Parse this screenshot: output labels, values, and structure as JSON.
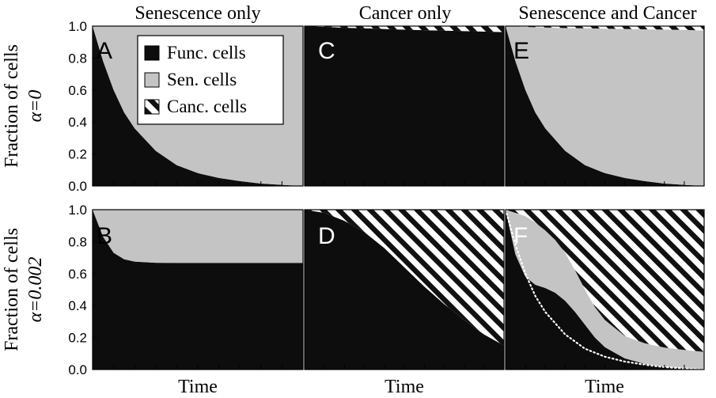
{
  "columns": [
    "Senescence only",
    "Cancer only",
    "Senescence and Cancer"
  ],
  "row_labels": [
    {
      "ylabel": "Fraction of cells",
      "param": "α=0"
    },
    {
      "ylabel": "Fraction of cells",
      "param": "α=0.002"
    }
  ],
  "xlabel": "Time",
  "y_ticks": [
    "0.0",
    "0.2",
    "0.4",
    "0.6",
    "0.8",
    "1.0"
  ],
  "legend": {
    "items": [
      {
        "label": "Func. cells",
        "pattern": "solid-black"
      },
      {
        "label": "Sen. cells",
        "pattern": "solid-grey"
      },
      {
        "label": "Canc. cells",
        "pattern": "hatched"
      }
    ]
  },
  "colors": {
    "functional": "#0d0d0d",
    "senescent": "#c4c4c4",
    "cancer_hatch": "#111111",
    "background": "#ffffff"
  },
  "chart_data": [
    {
      "panel": "A",
      "type": "area",
      "stacked": true,
      "ylim": [
        0,
        1
      ],
      "x": [
        0,
        0.05,
        0.1,
        0.15,
        0.2,
        0.3,
        0.4,
        0.5,
        0.6,
        0.7,
        0.8,
        0.9,
        1.0
      ],
      "series": [
        {
          "name": "Func. cells",
          "values": [
            1.0,
            0.78,
            0.6,
            0.46,
            0.36,
            0.22,
            0.13,
            0.08,
            0.05,
            0.03,
            0.015,
            0.007,
            0.0
          ]
        },
        {
          "name": "Sen. cells",
          "values": [
            0.0,
            0.22,
            0.4,
            0.54,
            0.64,
            0.78,
            0.87,
            0.92,
            0.95,
            0.97,
            0.985,
            0.993,
            1.0
          ]
        },
        {
          "name": "Canc. cells",
          "values": [
            0,
            0,
            0,
            0,
            0,
            0,
            0,
            0,
            0,
            0,
            0,
            0,
            0
          ]
        }
      ]
    },
    {
      "panel": "B",
      "type": "area",
      "stacked": true,
      "ylim": [
        0,
        1
      ],
      "x": [
        0,
        0.05,
        0.1,
        0.15,
        0.2,
        0.3,
        0.4,
        0.5,
        0.6,
        0.7,
        0.8,
        0.9,
        1.0
      ],
      "series": [
        {
          "name": "Func. cells",
          "values": [
            1.0,
            0.83,
            0.73,
            0.69,
            0.675,
            0.668,
            0.667,
            0.667,
            0.667,
            0.667,
            0.667,
            0.667,
            0.667
          ]
        },
        {
          "name": "Sen. cells",
          "values": [
            0.0,
            0.17,
            0.27,
            0.31,
            0.325,
            0.332,
            0.333,
            0.333,
            0.333,
            0.333,
            0.333,
            0.333,
            0.333
          ]
        },
        {
          "name": "Canc. cells",
          "values": [
            0,
            0,
            0,
            0,
            0,
            0,
            0,
            0,
            0,
            0,
            0,
            0,
            0
          ]
        }
      ]
    },
    {
      "panel": "C",
      "type": "area",
      "stacked": true,
      "ylim": [
        0,
        1
      ],
      "x": [
        0,
        0.1,
        0.2,
        0.3,
        0.4,
        0.5,
        0.6,
        0.7,
        0.8,
        0.9,
        1.0
      ],
      "series": [
        {
          "name": "Func. cells",
          "values": [
            1.0,
            0.995,
            0.99,
            0.986,
            0.982,
            0.978,
            0.975,
            0.972,
            0.969,
            0.966,
            0.963
          ]
        },
        {
          "name": "Sen. cells",
          "values": [
            0,
            0,
            0,
            0,
            0,
            0,
            0,
            0,
            0,
            0,
            0
          ]
        },
        {
          "name": "Canc. cells",
          "values": [
            0.0,
            0.005,
            0.01,
            0.014,
            0.018,
            0.022,
            0.025,
            0.028,
            0.031,
            0.034,
            0.037
          ]
        }
      ]
    },
    {
      "panel": "D",
      "type": "area",
      "stacked": true,
      "ylim": [
        0,
        1
      ],
      "x": [
        0,
        0.1,
        0.2,
        0.3,
        0.4,
        0.5,
        0.6,
        0.7,
        0.8,
        0.9,
        1.0
      ],
      "series": [
        {
          "name": "Func. cells",
          "values": [
            1.0,
            0.98,
            0.93,
            0.86,
            0.76,
            0.64,
            0.52,
            0.41,
            0.31,
            0.22,
            0.15
          ]
        },
        {
          "name": "Sen. cells",
          "values": [
            0,
            0,
            0,
            0,
            0,
            0,
            0,
            0,
            0,
            0,
            0
          ]
        },
        {
          "name": "Canc. cells",
          "values": [
            0.0,
            0.02,
            0.07,
            0.14,
            0.24,
            0.36,
            0.48,
            0.59,
            0.69,
            0.78,
            0.85
          ]
        }
      ]
    },
    {
      "panel": "E",
      "type": "area",
      "stacked": true,
      "ylim": [
        0,
        1
      ],
      "x": [
        0,
        0.05,
        0.1,
        0.15,
        0.2,
        0.3,
        0.4,
        0.5,
        0.6,
        0.7,
        0.8,
        0.9,
        1.0
      ],
      "series": [
        {
          "name": "Func. cells",
          "values": [
            1.0,
            0.78,
            0.6,
            0.46,
            0.36,
            0.22,
            0.13,
            0.08,
            0.05,
            0.03,
            0.015,
            0.007,
            0.0
          ]
        },
        {
          "name": "Sen. cells",
          "values": [
            0.0,
            0.218,
            0.395,
            0.533,
            0.631,
            0.768,
            0.856,
            0.904,
            0.932,
            0.95,
            0.963,
            0.969,
            0.973
          ]
        },
        {
          "name": "Canc. cells",
          "values": [
            0.0,
            0.002,
            0.005,
            0.007,
            0.009,
            0.012,
            0.014,
            0.016,
            0.018,
            0.02,
            0.022,
            0.024,
            0.027
          ]
        }
      ]
    },
    {
      "panel": "F",
      "type": "area",
      "stacked": true,
      "ylim": [
        0,
        1
      ],
      "x": [
        0,
        0.05,
        0.1,
        0.15,
        0.2,
        0.25,
        0.3,
        0.35,
        0.4,
        0.45,
        0.5,
        0.6,
        0.7,
        0.8,
        0.9,
        1.0
      ],
      "series": [
        {
          "name": "Func. cells",
          "values": [
            1.0,
            0.72,
            0.58,
            0.53,
            0.51,
            0.48,
            0.43,
            0.36,
            0.28,
            0.2,
            0.14,
            0.07,
            0.035,
            0.017,
            0.008,
            0.0
          ]
        },
        {
          "name": "Sen. cells",
          "values": [
            0.0,
            0.26,
            0.38,
            0.39,
            0.36,
            0.33,
            0.3,
            0.26,
            0.22,
            0.19,
            0.17,
            0.14,
            0.13,
            0.12,
            0.115,
            0.11
          ]
        },
        {
          "name": "Canc. cells",
          "values": [
            0.0,
            0.02,
            0.04,
            0.08,
            0.13,
            0.19,
            0.27,
            0.38,
            0.5,
            0.61,
            0.69,
            0.79,
            0.835,
            0.863,
            0.877,
            0.89
          ]
        }
      ],
      "dotted_line": {
        "x": [
          0,
          0.05,
          0.1,
          0.15,
          0.2,
          0.3,
          0.4,
          0.5,
          0.6,
          0.7,
          0.8,
          0.9,
          1.0
        ],
        "y": [
          1.0,
          0.78,
          0.6,
          0.46,
          0.36,
          0.22,
          0.13,
          0.08,
          0.05,
          0.03,
          0.015,
          0.007,
          0.0
        ]
      }
    }
  ]
}
